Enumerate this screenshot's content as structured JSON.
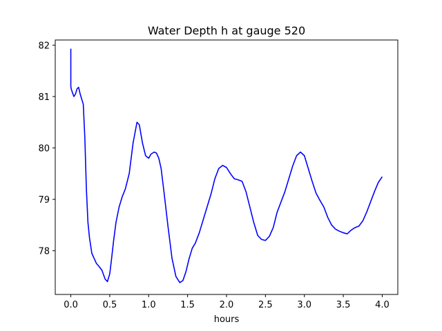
{
  "chart_data": {
    "type": "line",
    "title": "Water Depth h at gauge 520",
    "xlabel": "hours",
    "ylabel": "",
    "xlim": [
      -0.2,
      4.2
    ],
    "ylim": [
      77.15,
      82.1
    ],
    "xticks": [
      0.0,
      0.5,
      1.0,
      1.5,
      2.0,
      2.5,
      3.0,
      3.5,
      4.0
    ],
    "xtick_labels": [
      "0.0",
      "0.5",
      "1.0",
      "1.5",
      "2.0",
      "2.5",
      "3.0",
      "3.5",
      "4.0"
    ],
    "yticks": [
      78,
      79,
      80,
      81,
      82
    ],
    "ytick_labels": [
      "78",
      "79",
      "80",
      "81",
      "82"
    ],
    "grid": false,
    "series": [
      {
        "color": "#0000ff",
        "x": [
          0.0,
          0.0,
          0.005,
          0.02,
          0.04,
          0.06,
          0.08,
          0.1,
          0.12,
          0.14,
          0.16,
          0.18,
          0.2,
          0.22,
          0.24,
          0.27,
          0.3,
          0.33,
          0.36,
          0.4,
          0.44,
          0.47,
          0.5,
          0.52,
          0.55,
          0.58,
          0.62,
          0.66,
          0.7,
          0.75,
          0.8,
          0.85,
          0.88,
          0.92,
          0.96,
          1.0,
          1.03,
          1.07,
          1.1,
          1.13,
          1.16,
          1.2,
          1.25,
          1.3,
          1.35,
          1.4,
          1.44,
          1.48,
          1.52,
          1.56,
          1.6,
          1.65,
          1.7,
          1.75,
          1.8,
          1.85,
          1.9,
          1.95,
          2.0,
          2.05,
          2.1,
          2.15,
          2.2,
          2.25,
          2.3,
          2.35,
          2.4,
          2.45,
          2.5,
          2.55,
          2.6,
          2.65,
          2.7,
          2.75,
          2.8,
          2.85,
          2.9,
          2.95,
          3.0,
          3.05,
          3.1,
          3.15,
          3.2,
          3.25,
          3.3,
          3.35,
          3.4,
          3.45,
          3.5,
          3.55,
          3.6,
          3.65,
          3.7,
          3.75,
          3.8,
          3.85,
          3.9,
          3.95,
          4.0
        ],
        "y": [
          81.93,
          81.2,
          81.15,
          81.08,
          81.0,
          81.05,
          81.15,
          81.18,
          81.05,
          80.95,
          80.85,
          80.2,
          79.2,
          78.55,
          78.25,
          77.95,
          77.85,
          77.75,
          77.7,
          77.62,
          77.45,
          77.4,
          77.55,
          77.8,
          78.2,
          78.55,
          78.85,
          79.05,
          79.2,
          79.5,
          80.1,
          80.5,
          80.45,
          80.1,
          79.85,
          79.8,
          79.88,
          79.92,
          79.9,
          79.8,
          79.6,
          79.1,
          78.45,
          77.85,
          77.5,
          77.38,
          77.42,
          77.6,
          77.85,
          78.05,
          78.15,
          78.35,
          78.6,
          78.85,
          79.1,
          79.4,
          79.6,
          79.66,
          79.62,
          79.5,
          79.4,
          79.38,
          79.35,
          79.15,
          78.85,
          78.55,
          78.3,
          78.22,
          78.2,
          78.28,
          78.45,
          78.75,
          78.95,
          79.15,
          79.4,
          79.65,
          79.85,
          79.92,
          79.85,
          79.6,
          79.35,
          79.12,
          78.98,
          78.85,
          78.65,
          78.5,
          78.42,
          78.38,
          78.35,
          78.33,
          78.4,
          78.45,
          78.48,
          78.58,
          78.75,
          78.95,
          79.15,
          79.33,
          79.44
        ]
      }
    ]
  }
}
